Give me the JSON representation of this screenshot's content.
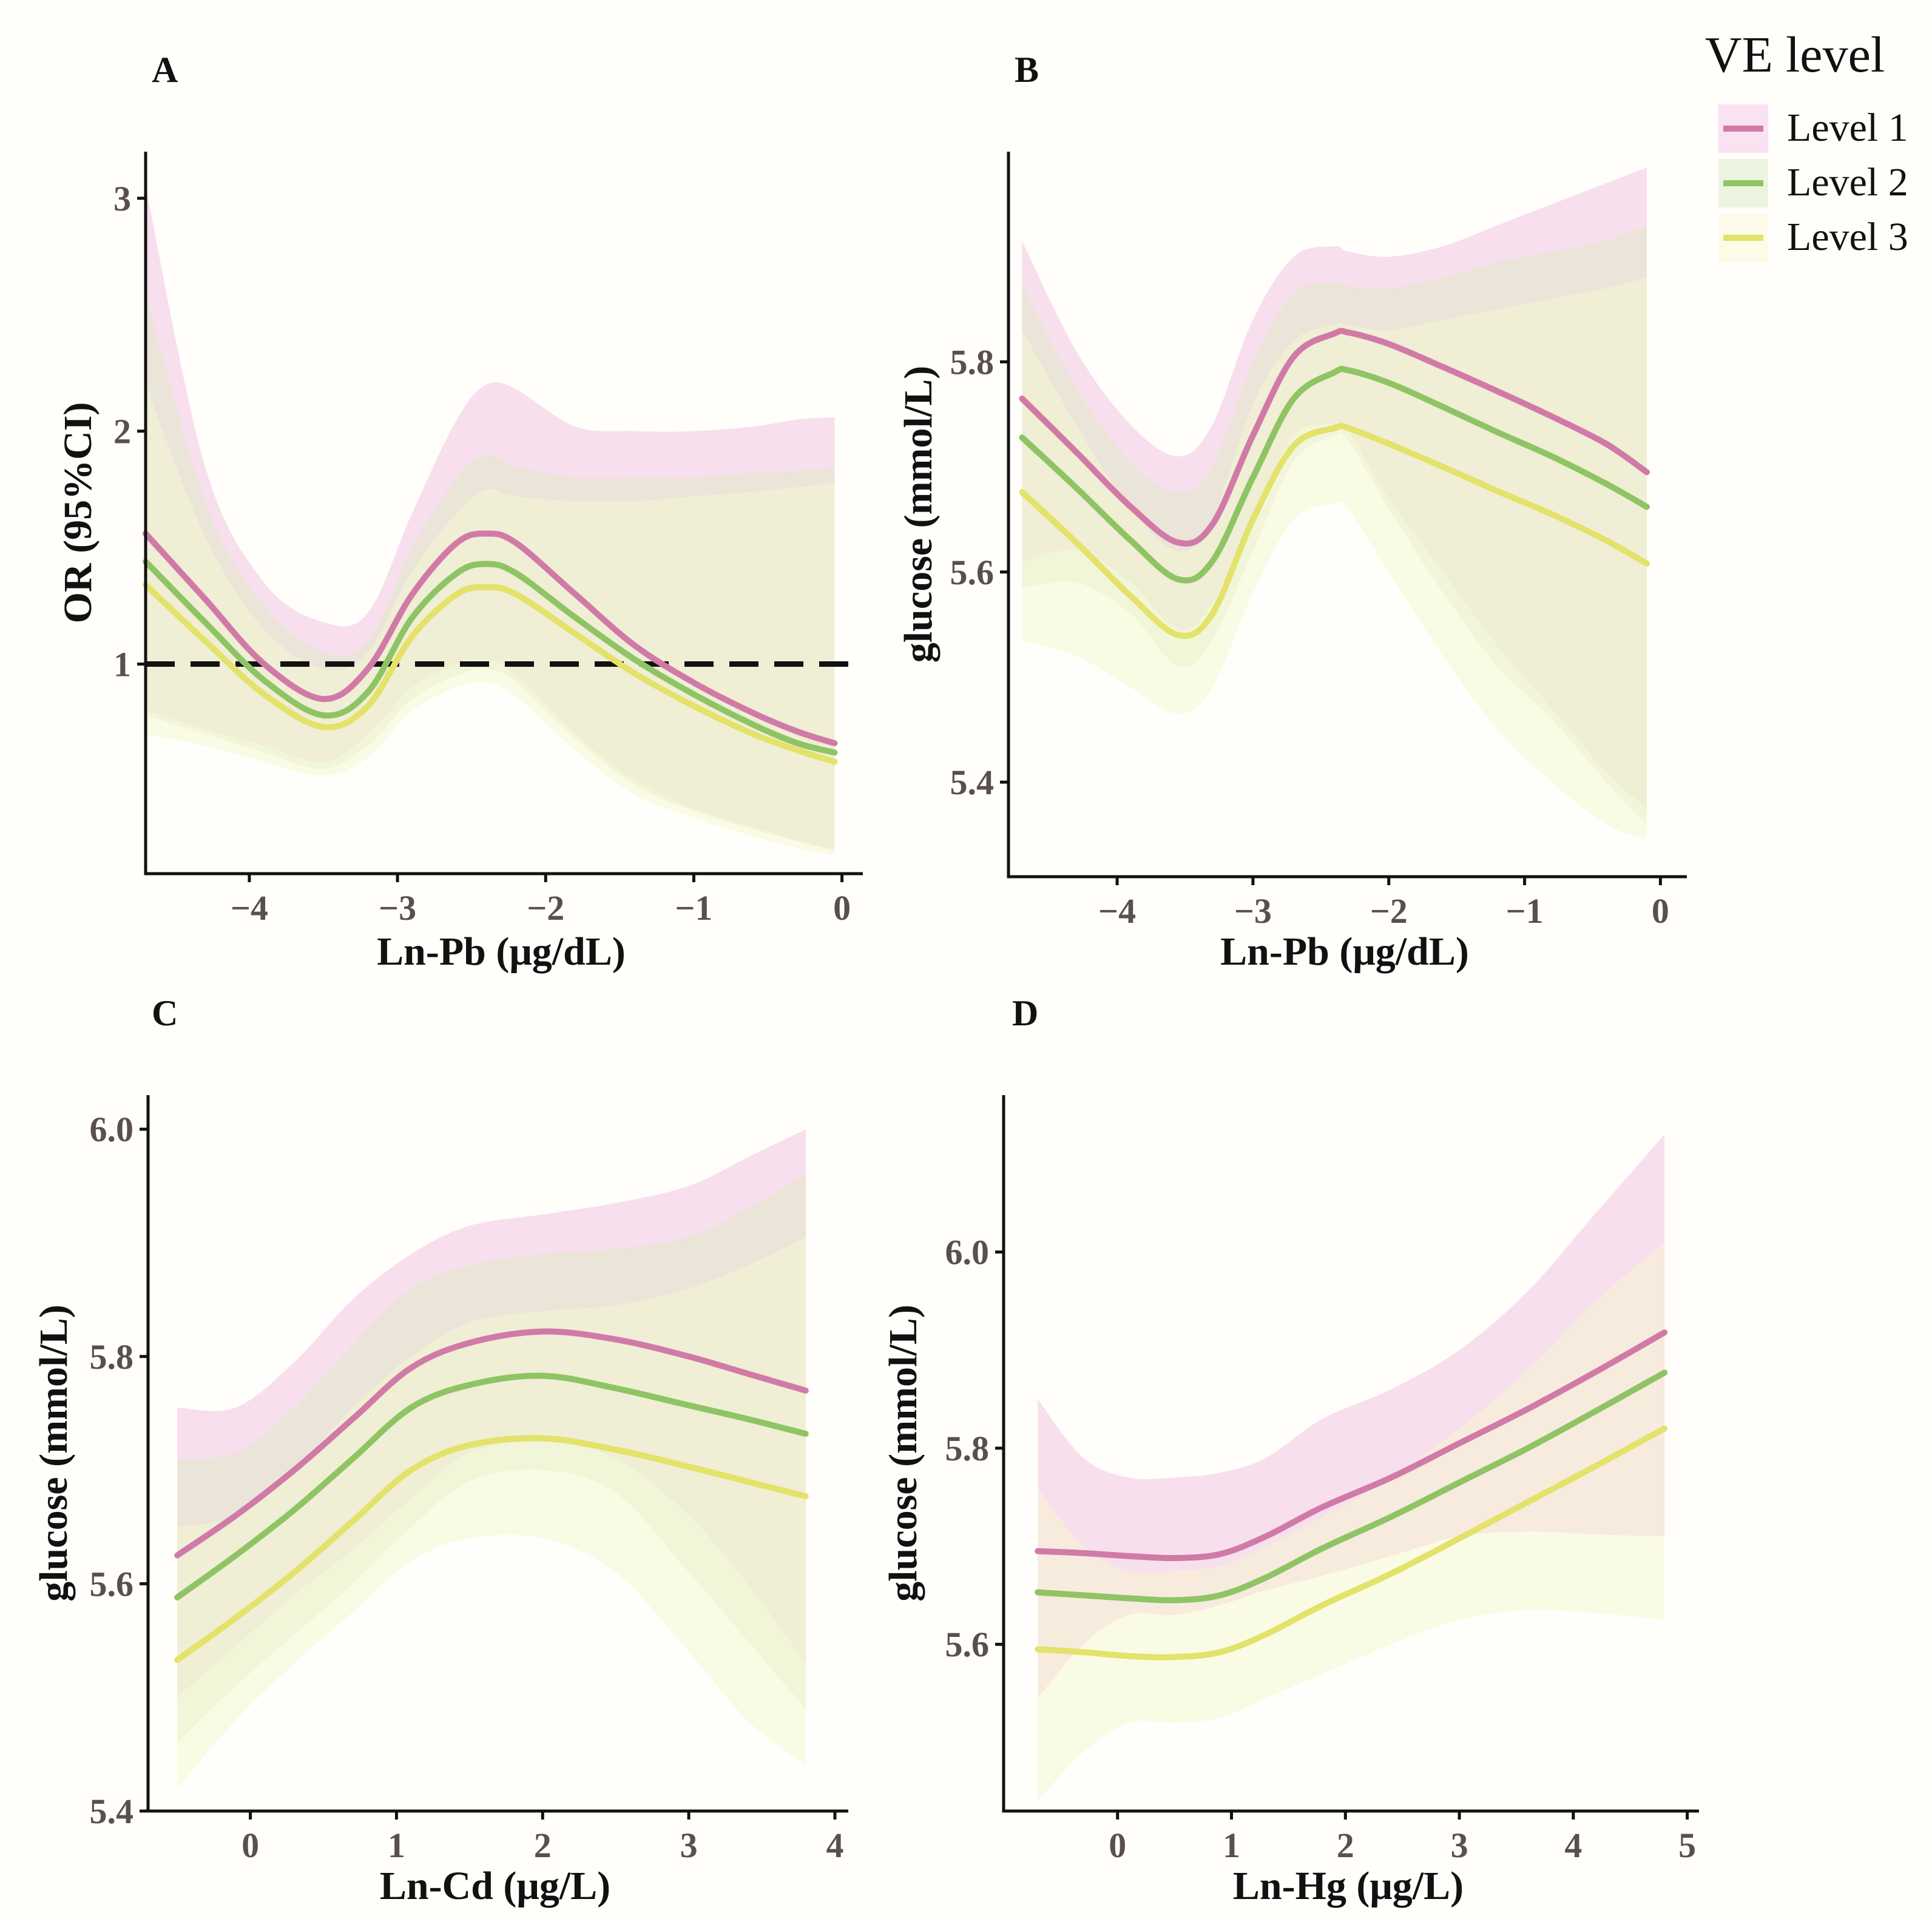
{
  "colors": {
    "Level 1": "#d17aa8",
    "Level 2": "#8fc464",
    "Level 3": "#e3e26a",
    "band_Level 1": "#f2c4e2",
    "band_Level 2": "#dcecc0",
    "band_Level 3": "#f6f7cf",
    "reference_line": "#111111"
  },
  "legend": {
    "title": "VE level",
    "items": [
      "Level 1",
      "Level 2",
      "Level 3"
    ]
  },
  "chart_data": [
    {
      "panel": "A",
      "type": "line",
      "xlabel": "Ln-Pb (μg/dL)",
      "ylabel": "OR (95%CI)",
      "xlim": [
        -4.7,
        0.1
      ],
      "ylim": [
        0.1,
        3.2
      ],
      "xticks": [
        -4,
        -3,
        -2,
        -1,
        0
      ],
      "yticks": [
        1,
        2,
        3
      ],
      "reference_line": 1,
      "x": [
        -4.7,
        -4.3,
        -3.9,
        -3.5,
        -3.2,
        -2.9,
        -2.6,
        -2.4,
        -2.2,
        -1.8,
        -1.4,
        -1.0,
        -0.6,
        -0.3,
        -0.05
      ],
      "series": [
        {
          "name": "Level 1",
          "y": [
            1.56,
            1.28,
            1.0,
            0.85,
            0.98,
            1.3,
            1.52,
            1.56,
            1.52,
            1.3,
            1.08,
            0.92,
            0.79,
            0.71,
            0.66
          ],
          "lower": [
            0.8,
            0.72,
            0.65,
            0.58,
            0.7,
            0.9,
            1.0,
            1.02,
            0.95,
            0.7,
            0.5,
            0.38,
            0.3,
            0.24,
            0.2
          ],
          "upper": [
            3.05,
            1.85,
            1.35,
            1.18,
            1.22,
            1.65,
            2.05,
            2.2,
            2.18,
            2.02,
            2.0,
            2.0,
            2.02,
            2.05,
            2.06
          ]
        },
        {
          "name": "Level 2",
          "y": [
            1.44,
            1.18,
            0.93,
            0.78,
            0.88,
            1.2,
            1.39,
            1.43,
            1.39,
            1.2,
            1.02,
            0.87,
            0.74,
            0.66,
            0.62
          ],
          "lower": [
            0.78,
            0.7,
            0.62,
            0.55,
            0.65,
            0.85,
            0.95,
            0.98,
            0.92,
            0.68,
            0.48,
            0.37,
            0.29,
            0.24,
            0.2
          ],
          "upper": [
            2.6,
            1.7,
            1.25,
            1.05,
            1.1,
            1.5,
            1.8,
            1.9,
            1.85,
            1.8,
            1.8,
            1.8,
            1.82,
            1.83,
            1.84
          ]
        },
        {
          "name": "Level 3",
          "y": [
            1.34,
            1.1,
            0.87,
            0.73,
            0.82,
            1.12,
            1.3,
            1.33,
            1.3,
            1.13,
            0.96,
            0.82,
            0.7,
            0.63,
            0.58
          ],
          "lower": [
            0.7,
            0.65,
            0.58,
            0.52,
            0.6,
            0.8,
            0.9,
            0.92,
            0.86,
            0.63,
            0.44,
            0.34,
            0.26,
            0.21,
            0.18
          ],
          "upper": [
            2.2,
            1.55,
            1.15,
            0.98,
            1.05,
            1.4,
            1.65,
            1.75,
            1.72,
            1.7,
            1.7,
            1.72,
            1.74,
            1.76,
            1.78
          ]
        }
      ]
    },
    {
      "panel": "B",
      "type": "line",
      "xlabel": "Ln-Pb (μg/dL)",
      "ylabel": "glucose (mmol/L)",
      "xlim": [
        -4.8,
        0.15
      ],
      "ylim": [
        5.31,
        6.0
      ],
      "xticks": [
        -4,
        -3,
        -2,
        -1,
        0
      ],
      "yticks": [
        5.4,
        5.6,
        5.8
      ],
      "x": [
        -4.7,
        -4.3,
        -3.9,
        -3.55,
        -3.3,
        -3.0,
        -2.7,
        -2.4,
        -2.3,
        -2.0,
        -1.6,
        -1.2,
        -0.8,
        -0.4,
        -0.1
      ],
      "series": [
        {
          "name": "Level 1",
          "y": [
            5.765,
            5.714,
            5.662,
            5.628,
            5.645,
            5.73,
            5.805,
            5.827,
            5.828,
            5.817,
            5.795,
            5.772,
            5.748,
            5.722,
            5.695
          ],
          "lower": [
            5.61,
            5.62,
            5.59,
            5.545,
            5.57,
            5.65,
            5.73,
            5.74,
            5.735,
            5.67,
            5.6,
            5.53,
            5.47,
            5.41,
            5.375
          ],
          "upper": [
            5.915,
            5.81,
            5.74,
            5.71,
            5.74,
            5.84,
            5.9,
            5.91,
            5.905,
            5.9,
            5.91,
            5.93,
            5.95,
            5.97,
            5.985
          ]
        },
        {
          "name": "Level 2",
          "y": [
            5.728,
            5.68,
            5.63,
            5.593,
            5.61,
            5.69,
            5.765,
            5.79,
            5.792,
            5.78,
            5.757,
            5.733,
            5.71,
            5.684,
            5.662
          ],
          "lower": [
            5.585,
            5.59,
            5.56,
            5.51,
            5.535,
            5.62,
            5.705,
            5.73,
            5.725,
            5.66,
            5.58,
            5.51,
            5.46,
            5.4,
            5.36
          ],
          "upper": [
            5.875,
            5.775,
            5.705,
            5.675,
            5.7,
            5.8,
            5.865,
            5.875,
            5.872,
            5.87,
            5.88,
            5.895,
            5.905,
            5.915,
            5.93
          ]
        },
        {
          "name": "Level 3",
          "y": [
            5.676,
            5.628,
            5.577,
            5.54,
            5.56,
            5.65,
            5.72,
            5.737,
            5.737,
            5.722,
            5.7,
            5.677,
            5.655,
            5.63,
            5.608
          ],
          "lower": [
            5.535,
            5.52,
            5.49,
            5.465,
            5.49,
            5.58,
            5.65,
            5.665,
            5.66,
            5.6,
            5.52,
            5.45,
            5.4,
            5.36,
            5.345
          ],
          "upper": [
            5.83,
            5.74,
            5.66,
            5.62,
            5.65,
            5.76,
            5.82,
            5.835,
            5.835,
            5.83,
            5.84,
            5.85,
            5.86,
            5.87,
            5.88
          ]
        }
      ]
    },
    {
      "panel": "C",
      "type": "line",
      "xlabel": "Ln-Cd (μg/L)",
      "ylabel": "glucose (mmol/L)",
      "xlim": [
        -0.7,
        4.05
      ],
      "ylim": [
        5.4,
        6.03
      ],
      "xticks": [
        0,
        1,
        2,
        3,
        4
      ],
      "yticks": [
        5.4,
        5.6,
        5.8,
        6.0
      ],
      "x": [
        -0.5,
        -0.1,
        0.3,
        0.7,
        1.1,
        1.5,
        2.0,
        2.5,
        3.0,
        3.4,
        3.8
      ],
      "series": [
        {
          "name": "Level 1",
          "y": [
            5.625,
            5.66,
            5.7,
            5.745,
            5.79,
            5.812,
            5.822,
            5.815,
            5.8,
            5.785,
            5.77
          ],
          "lower": [
            5.5,
            5.545,
            5.59,
            5.63,
            5.675,
            5.715,
            5.725,
            5.71,
            5.66,
            5.6,
            5.53
          ],
          "upper": [
            5.755,
            5.755,
            5.795,
            5.85,
            5.89,
            5.915,
            5.925,
            5.935,
            5.95,
            5.975,
            6.0
          ]
        },
        {
          "name": "Level 2",
          "y": [
            5.588,
            5.625,
            5.665,
            5.71,
            5.755,
            5.775,
            5.783,
            5.772,
            5.757,
            5.745,
            5.732
          ],
          "lower": [
            5.46,
            5.51,
            5.555,
            5.6,
            5.65,
            5.69,
            5.7,
            5.68,
            5.61,
            5.55,
            5.49
          ],
          "upper": [
            5.71,
            5.715,
            5.755,
            5.81,
            5.86,
            5.88,
            5.89,
            5.895,
            5.905,
            5.93,
            5.96
          ]
        },
        {
          "name": "Level 3",
          "y": [
            5.533,
            5.57,
            5.61,
            5.655,
            5.7,
            5.722,
            5.728,
            5.718,
            5.703,
            5.69,
            5.677
          ],
          "lower": [
            5.42,
            5.48,
            5.53,
            5.575,
            5.62,
            5.64,
            5.64,
            5.61,
            5.54,
            5.48,
            5.44
          ],
          "upper": [
            5.65,
            5.66,
            5.7,
            5.755,
            5.8,
            5.83,
            5.84,
            5.845,
            5.86,
            5.88,
            5.905
          ]
        }
      ]
    },
    {
      "panel": "D",
      "type": "line",
      "xlabel": "Ln-Hg (μg/L)",
      "ylabel": "glucose (mmol/L)",
      "xlim": [
        -1.0,
        5.05
      ],
      "ylim": [
        5.43,
        6.16
      ],
      "xticks": [
        0,
        1,
        2,
        3,
        4,
        5
      ],
      "yticks": [
        5.6,
        5.8,
        6.0
      ],
      "x": [
        -0.7,
        -0.3,
        0.1,
        0.5,
        0.9,
        1.3,
        1.8,
        2.4,
        3.0,
        3.6,
        4.2,
        4.8
      ],
      "series": [
        {
          "name": "Level 1",
          "y": [
            5.695,
            5.693,
            5.69,
            5.688,
            5.692,
            5.71,
            5.74,
            5.77,
            5.805,
            5.84,
            5.878,
            5.918
          ],
          "lower": [
            5.545,
            5.6,
            5.63,
            5.63,
            5.64,
            5.655,
            5.67,
            5.69,
            5.71,
            5.715,
            5.712,
            5.71
          ],
          "upper": [
            5.85,
            5.79,
            5.77,
            5.77,
            5.775,
            5.79,
            5.83,
            5.86,
            5.9,
            5.96,
            6.04,
            6.12
          ]
        },
        {
          "name": "Level 2",
          "y": [
            5.653,
            5.65,
            5.647,
            5.645,
            5.65,
            5.668,
            5.698,
            5.73,
            5.765,
            5.8,
            5.838,
            5.877
          ]
        },
        {
          "name": "Level 3",
          "y": [
            5.595,
            5.592,
            5.588,
            5.587,
            5.592,
            5.61,
            5.64,
            5.672,
            5.708,
            5.745,
            5.782,
            5.82
          ],
          "lower": [
            5.44,
            5.49,
            5.52,
            5.52,
            5.525,
            5.545,
            5.57,
            5.6,
            5.625,
            5.635,
            5.632,
            5.625
          ],
          "upper": [
            5.76,
            5.7,
            5.675,
            5.675,
            5.68,
            5.7,
            5.73,
            5.77,
            5.82,
            5.88,
            5.95,
            6.01
          ]
        }
      ]
    }
  ]
}
